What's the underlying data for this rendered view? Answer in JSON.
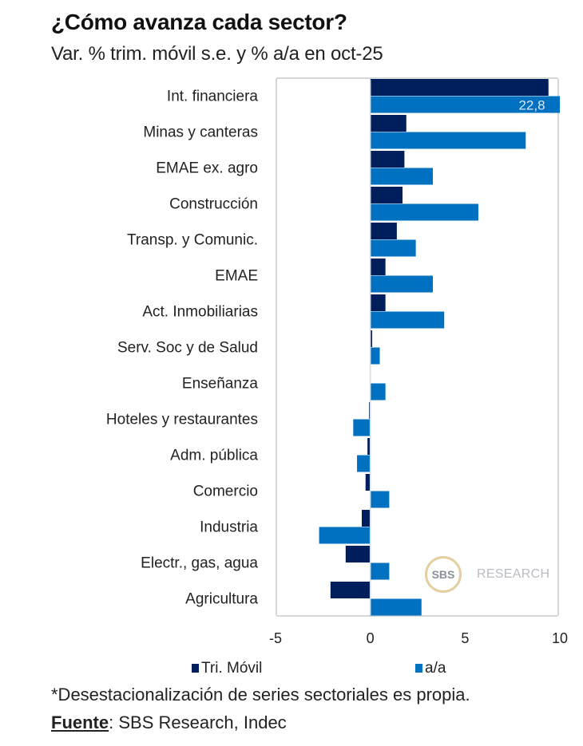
{
  "header": {
    "title": "¿Cómo avanza cada sector?",
    "subtitle": "Var. % trim. móvil s.e. y % a/a en oct-25"
  },
  "colors": {
    "tri_movil": "#001e5c",
    "aa": "#0070c0",
    "frame": "#d6d6d6",
    "data_label": "#d9e8f7"
  },
  "chart_data": {
    "type": "bar",
    "orientation": "horizontal",
    "title": "¿Cómo avanza cada sector?",
    "subtitle": "Var. % trim. móvil s.e. y % a/a en oct-25",
    "xlabel": "",
    "ylabel": "",
    "categories": [
      "Int. financiera",
      "Minas y canteras",
      "EMAE ex. agro",
      "Construcción",
      "Transp. y Comunic.",
      "EMAE",
      "Act. Inmobiliarias",
      "Serv. Soc y de Salud",
      "Enseñanza",
      "Hoteles y restaurantes",
      "Adm. pública",
      "Comercio",
      "Industria",
      "Electr., gas, agua",
      "Agricultura"
    ],
    "series": [
      {
        "name": "Tri. Móvil",
        "values": [
          9.4,
          1.9,
          1.8,
          1.7,
          1.4,
          0.8,
          0.8,
          0.1,
          0.0,
          -0.05,
          -0.15,
          -0.25,
          -0.45,
          -1.3,
          -2.1
        ]
      },
      {
        "name": "a/a",
        "values": [
          22.8,
          8.2,
          3.3,
          5.7,
          2.4,
          3.3,
          3.9,
          0.5,
          0.8,
          -0.9,
          -0.7,
          1.0,
          -2.7,
          1.0,
          2.7
        ]
      }
    ],
    "data_labels": [
      {
        "series": "a/a",
        "category": "Int. financiera",
        "text": "22,8"
      }
    ],
    "xlim": [
      -5,
      10
    ],
    "xticks": [
      -5,
      0,
      5,
      10
    ],
    "xtick_labels": [
      "-5",
      "0",
      "5",
      "10"
    ],
    "grid": false,
    "legend": {
      "position": "bottom",
      "entries": [
        "Tri. Móvil",
        "a/a"
      ]
    }
  },
  "legend": {
    "tri_movil_label": "Tri. Móvil",
    "aa_label": "a/a"
  },
  "footer": {
    "note": "*Desestacionalización de series sectoriales es propia.",
    "source_key": "Fuente",
    "source_rest": ": SBS Research, Indec"
  },
  "logo": {
    "mark": "SBS",
    "word": "RESEARCH"
  }
}
